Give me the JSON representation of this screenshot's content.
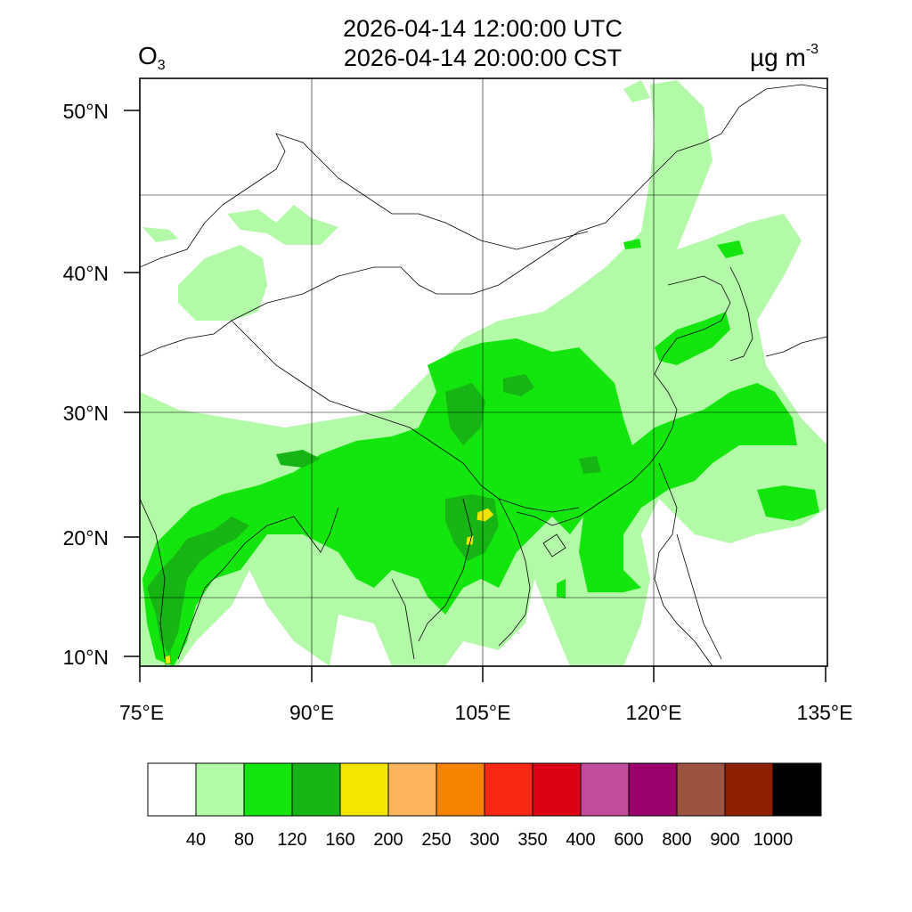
{
  "title": {
    "line1": "2026-04-14 12:00:00 UTC",
    "line2": "2026-04-14 20:00:00 CST",
    "variable": "O",
    "variable_subscript": "3",
    "unit_base": "µg m",
    "unit_exponent": "-3"
  },
  "axes": {
    "lat_labels": [
      "50°N",
      "40°N",
      "30°N",
      "20°N",
      "10°N"
    ],
    "lon_labels": [
      "75°E",
      "90°E",
      "105°E",
      "120°E",
      "135°E"
    ]
  },
  "colorbar": {
    "colors": [
      "#ffffff",
      "#b2f9a8",
      "#12e60c",
      "#16b414",
      "#f2e600",
      "#fbb45c",
      "#f58200",
      "#fa2814",
      "#dc0014",
      "#c04c9c",
      "#9c006c",
      "#9c5440",
      "#8c2000",
      "#000000"
    ],
    "labels": [
      "40",
      "80",
      "120",
      "160",
      "200",
      "250",
      "300",
      "350",
      "400",
      "600",
      "800",
      "900",
      "1000"
    ]
  },
  "colors": {
    "light_green": "#b2f9a8",
    "green": "#12e60c",
    "dark_green": "#16b414",
    "yellow": "#f2e600"
  }
}
